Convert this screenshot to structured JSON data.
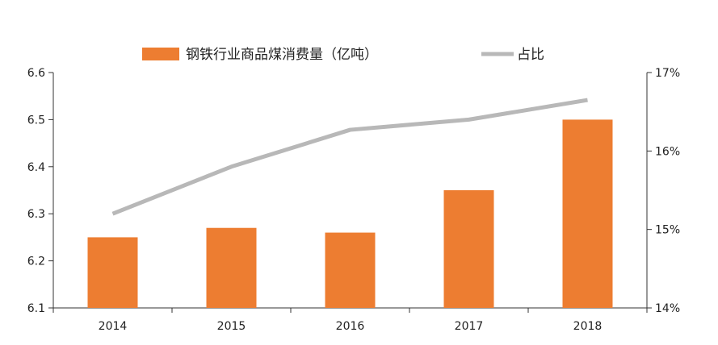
{
  "chart_data": {
    "type": "bar",
    "categories": [
      "2014",
      "2015",
      "2016",
      "2017",
      "2018"
    ],
    "series": [
      {
        "name": "钢铁行业商品煤消费量（亿吨）",
        "type": "bar",
        "axis": "left",
        "color": "#ED7D31",
        "values": [
          6.25,
          6.27,
          6.26,
          6.35,
          6.5
        ]
      },
      {
        "name": "占比",
        "type": "line",
        "axis": "right",
        "color": "#B8B8B8",
        "values": [
          15.2,
          15.8,
          16.27,
          16.4,
          16.65
        ]
      }
    ],
    "left_axis": {
      "ylim": [
        6.1,
        6.6
      ],
      "ticks": [
        "6.1",
        "6.2",
        "6.3",
        "6.4",
        "6.5",
        "6.6"
      ]
    },
    "right_axis": {
      "ylim": [
        14,
        17
      ],
      "ticks": [
        "14%",
        "15%",
        "16%",
        "17%"
      ],
      "unit": "%"
    },
    "legend": {
      "position": "top",
      "bar_label": "钢铁行业商品煤消费量（亿吨）",
      "line_label": "占比"
    },
    "grid": false
  }
}
